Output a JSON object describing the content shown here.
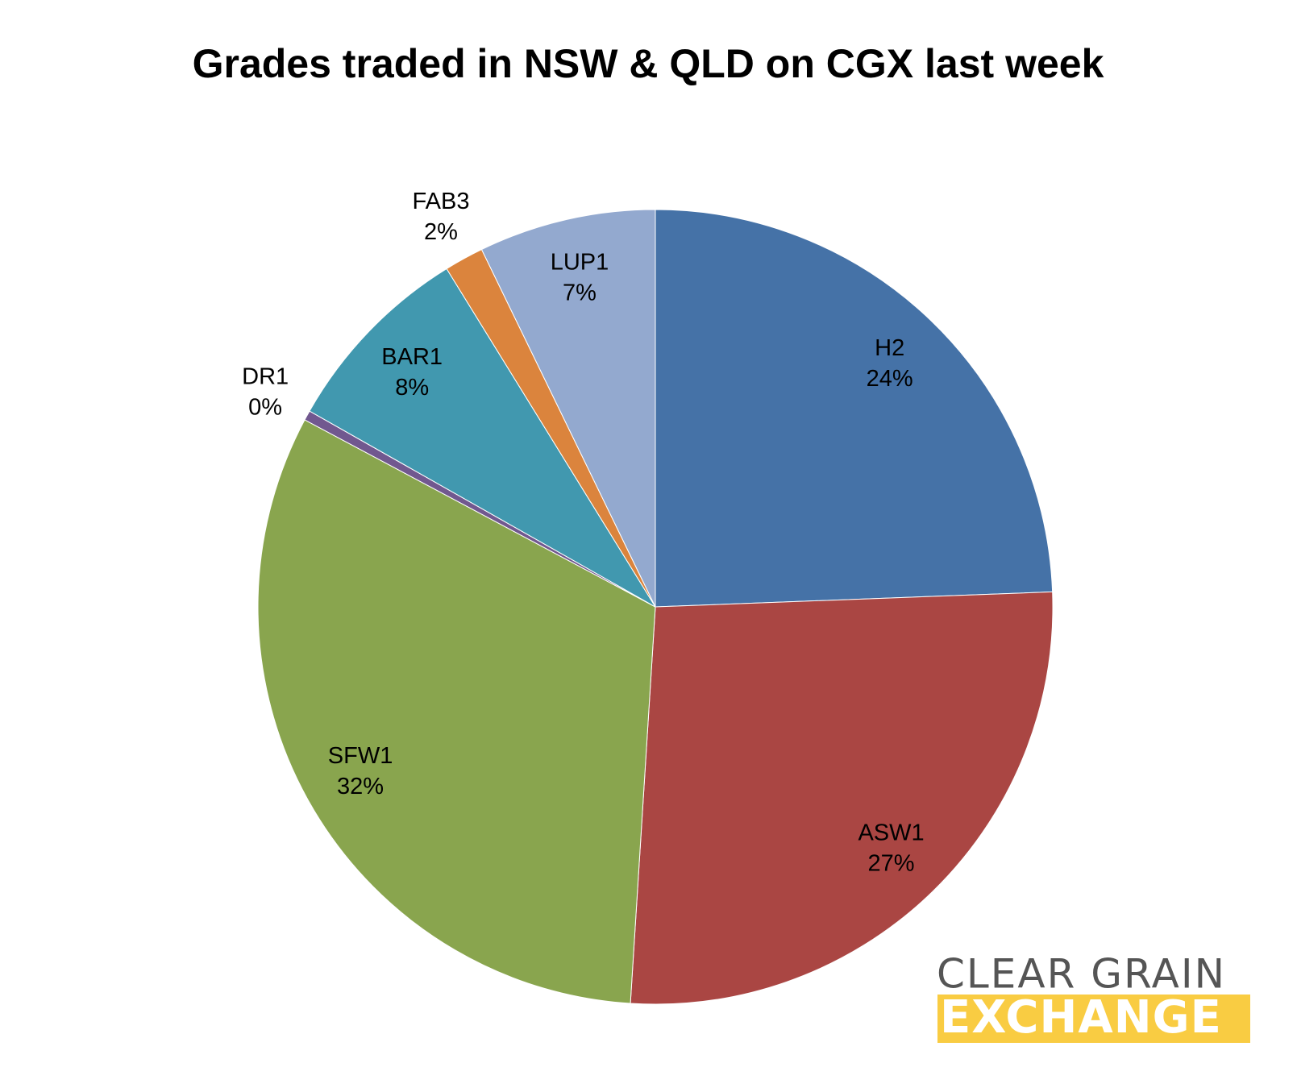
{
  "chart_data": {
    "type": "pie",
    "title": "Grades traded in NSW & QLD on CGX last week",
    "categories": [
      "H2",
      "ASW1",
      "SFW1",
      "DR1",
      "BAR1",
      "FAB3",
      "LUP1"
    ],
    "values": [
      24.4,
      26.6,
      31.8,
      0.4,
      8.0,
      1.6,
      7.2
    ],
    "value_labels": [
      "24%",
      "27%",
      "32%",
      "0%",
      "8%",
      "2%",
      "7%"
    ],
    "colors": [
      "#4572a7",
      "#aa4643",
      "#89a54e",
      "#71588f",
      "#4198af",
      "#db843d",
      "#93a9cf"
    ]
  },
  "logo": {
    "line1": "CLEAR GRAIN",
    "line2": "EXCHANGE"
  }
}
